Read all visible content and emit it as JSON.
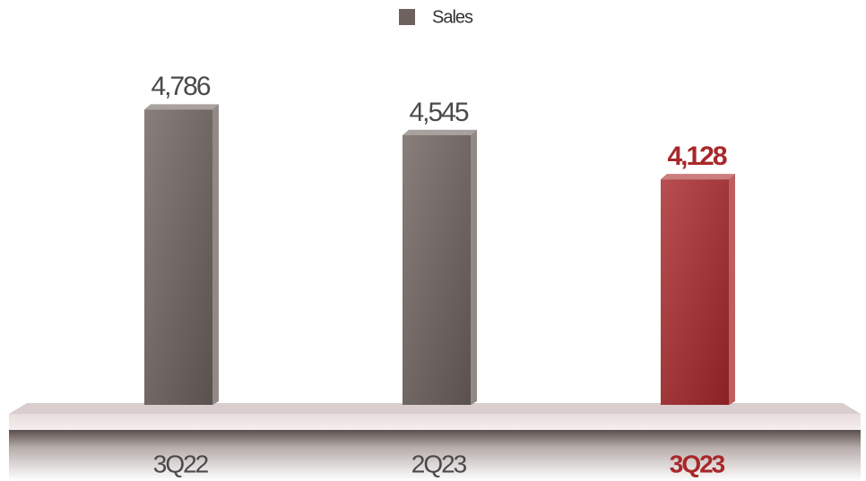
{
  "chart_data": {
    "type": "bar",
    "categories": [
      "3Q22",
      "2Q23",
      "3Q23"
    ],
    "series": [
      {
        "name": "Sales",
        "color": "#6e625e",
        "values": [
          4786,
          4545,
          4128
        ],
        "value_labels": [
          "4,786",
          "4,545",
          "4,128"
        ]
      }
    ],
    "colors": [
      "#6e625e",
      "#6e625e",
      "#a8282a"
    ],
    "label_colors": [
      "#4a4a4a",
      "#4a4a4a",
      "#a8282a"
    ],
    "ylim": [
      2000,
      5000
    ],
    "legend": "top"
  }
}
